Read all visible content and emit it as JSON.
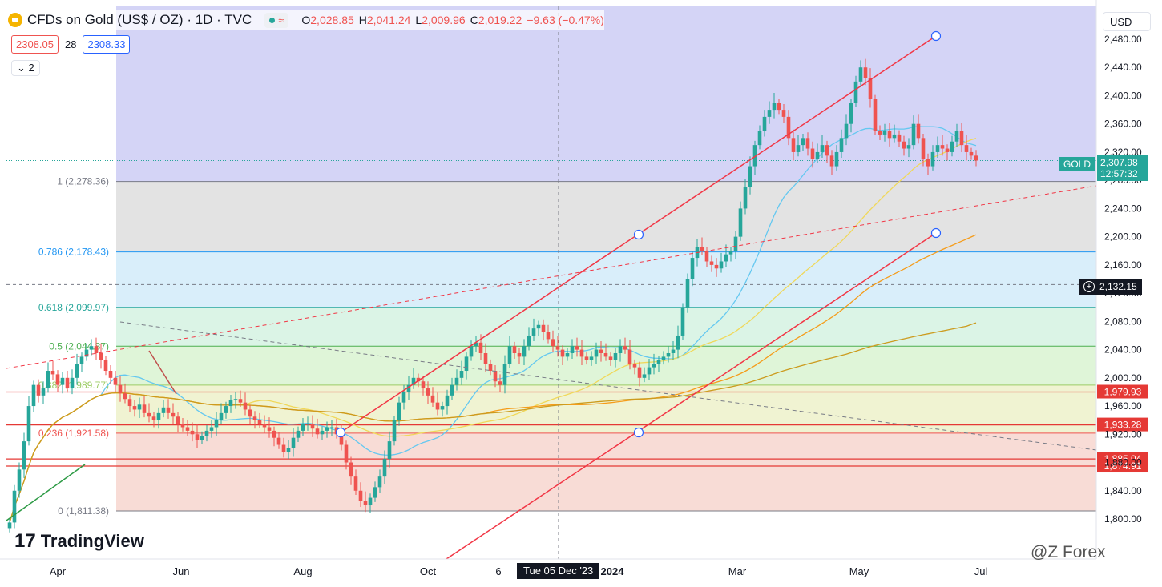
{
  "header": {
    "title": "CFDs on Gold (US$ / OZ) · 1D · TVC",
    "badge_symbol": "≈",
    "open_label": "O",
    "open": "2,028.85",
    "high_label": "H",
    "high": "2,041.24",
    "low_label": "L",
    "low": "2,009.96",
    "close_label": "C",
    "close": "2,019.22",
    "change": "−9.63 (−0.47%)"
  },
  "bidask": {
    "bid": "2308.05",
    "spread": "28",
    "ask": "2308.33"
  },
  "collapse_label": "2",
  "currency": "USD",
  "logo_text": "TradingView",
  "watermark": "@Z Forex",
  "crosshair_date": "Tue 05 Dec '23",
  "colors": {
    "up": "#26a69a",
    "down": "#ef5350",
    "channel": "#f23645",
    "ma_fast": "#64c8f0",
    "ma_mid": "#f0d85a",
    "ma_slow": "#f59c1a",
    "ma_long": "#cc9b1e"
  },
  "chart_data": {
    "type": "candlestick",
    "symbol": "GOLD",
    "last_price": "2,307.98",
    "countdown": "12:57:32",
    "crosshair_price": "2,132.15",
    "ylim": [
      1780,
      2500
    ],
    "y_ticks": [
      "1,800.00",
      "1,840.00",
      "1,880.00",
      "1,920.00",
      "1,960.00",
      "2,000.00",
      "2,040.00",
      "2,080.00",
      "2,120.00",
      "2,160.00",
      "2,200.00",
      "2,240.00",
      "2,280.00",
      "2,320.00",
      "2,360.00",
      "2,400.00",
      "2,440.00",
      "2,480.00"
    ],
    "x_labels": [
      "Apr",
      "Jun",
      "Aug",
      "Oct",
      "6",
      "2024",
      "Mar",
      "May",
      "Jul"
    ],
    "fib_levels": [
      {
        "level": "1",
        "label": "1 (2,278.36)",
        "price": 2278.36
      },
      {
        "level": "0.786",
        "label": "0.786 (2,178.43)",
        "price": 2178.43
      },
      {
        "level": "0.618",
        "label": "0.618 (2,099.97)",
        "price": 2099.97
      },
      {
        "level": "0.5",
        "label": "0.5 (2,044.87)",
        "price": 2044.87
      },
      {
        "level": "0.382",
        "label": "0.382 (1,989.77)",
        "price": 1989.77
      },
      {
        "level": "0.236",
        "label": "0.236 (1,921.58)",
        "price": 1921.58
      },
      {
        "level": "0",
        "label": "0 (1,811.38)",
        "price": 1811.38
      }
    ],
    "price_tags": [
      "1,979.93",
      "1,933.28",
      "1,885.04",
      "1,874.91"
    ],
    "horizontal_lines": [
      1979.93,
      1933.28,
      1885.04,
      1874.91
    ],
    "close_series": [
      1795,
      1840,
      1870,
      1910,
      1960,
      1990,
      1975,
      1985,
      2010,
      2005,
      1990,
      2000,
      1985,
      2000,
      2020,
      2030,
      2040,
      2045,
      2035,
      2025,
      2010,
      2000,
      1990,
      1978,
      1970,
      1960,
      1955,
      1962,
      1950,
      1945,
      1940,
      1950,
      1958,
      1950,
      1945,
      1935,
      1930,
      1925,
      1920,
      1912,
      1918,
      1925,
      1930,
      1940,
      1950,
      1960,
      1968,
      1970,
      1965,
      1955,
      1945,
      1940,
      1935,
      1930,
      1925,
      1915,
      1905,
      1895,
      1900,
      1915,
      1925,
      1935,
      1935,
      1928,
      1920,
      1925,
      1930,
      1930,
      1920,
      1905,
      1880,
      1860,
      1840,
      1825,
      1820,
      1830,
      1845,
      1860,
      1885,
      1910,
      1940,
      1965,
      1980,
      1990,
      2000,
      1995,
      1985,
      1975,
      1965,
      1955,
      1960,
      1975,
      1990,
      2000,
      2010,
      2030,
      2045,
      2050,
      2035,
      2020,
      2010,
      1995,
      1990,
      2020,
      2045,
      2035,
      2030,
      2045,
      2060,
      2070,
      2075,
      2065,
      2055,
      2045,
      2040,
      2030,
      2035,
      2045,
      2040,
      2030,
      2025,
      2030,
      2040,
      2035,
      2030,
      2025,
      2035,
      2045,
      2040,
      2020,
      2015,
      2000,
      2005,
      2015,
      2020,
      2025,
      2030,
      2035,
      2040,
      2060,
      2100,
      2140,
      2170,
      2185,
      2180,
      2165,
      2160,
      2155,
      2165,
      2175,
      2180,
      2200,
      2240,
      2270,
      2300,
      2330,
      2350,
      2370,
      2380,
      2390,
      2380,
      2370,
      2340,
      2320,
      2330,
      2340,
      2325,
      2310,
      2320,
      2330,
      2315,
      2300,
      2320,
      2340,
      2360,
      2390,
      2420,
      2440,
      2425,
      2395,
      2350,
      2345,
      2350,
      2340,
      2345,
      2335,
      2325,
      2330,
      2360,
      2340,
      2310,
      2300,
      2320,
      2330,
      2325,
      2320,
      2335,
      2350,
      2330,
      2320,
      2315,
      2308
    ]
  }
}
